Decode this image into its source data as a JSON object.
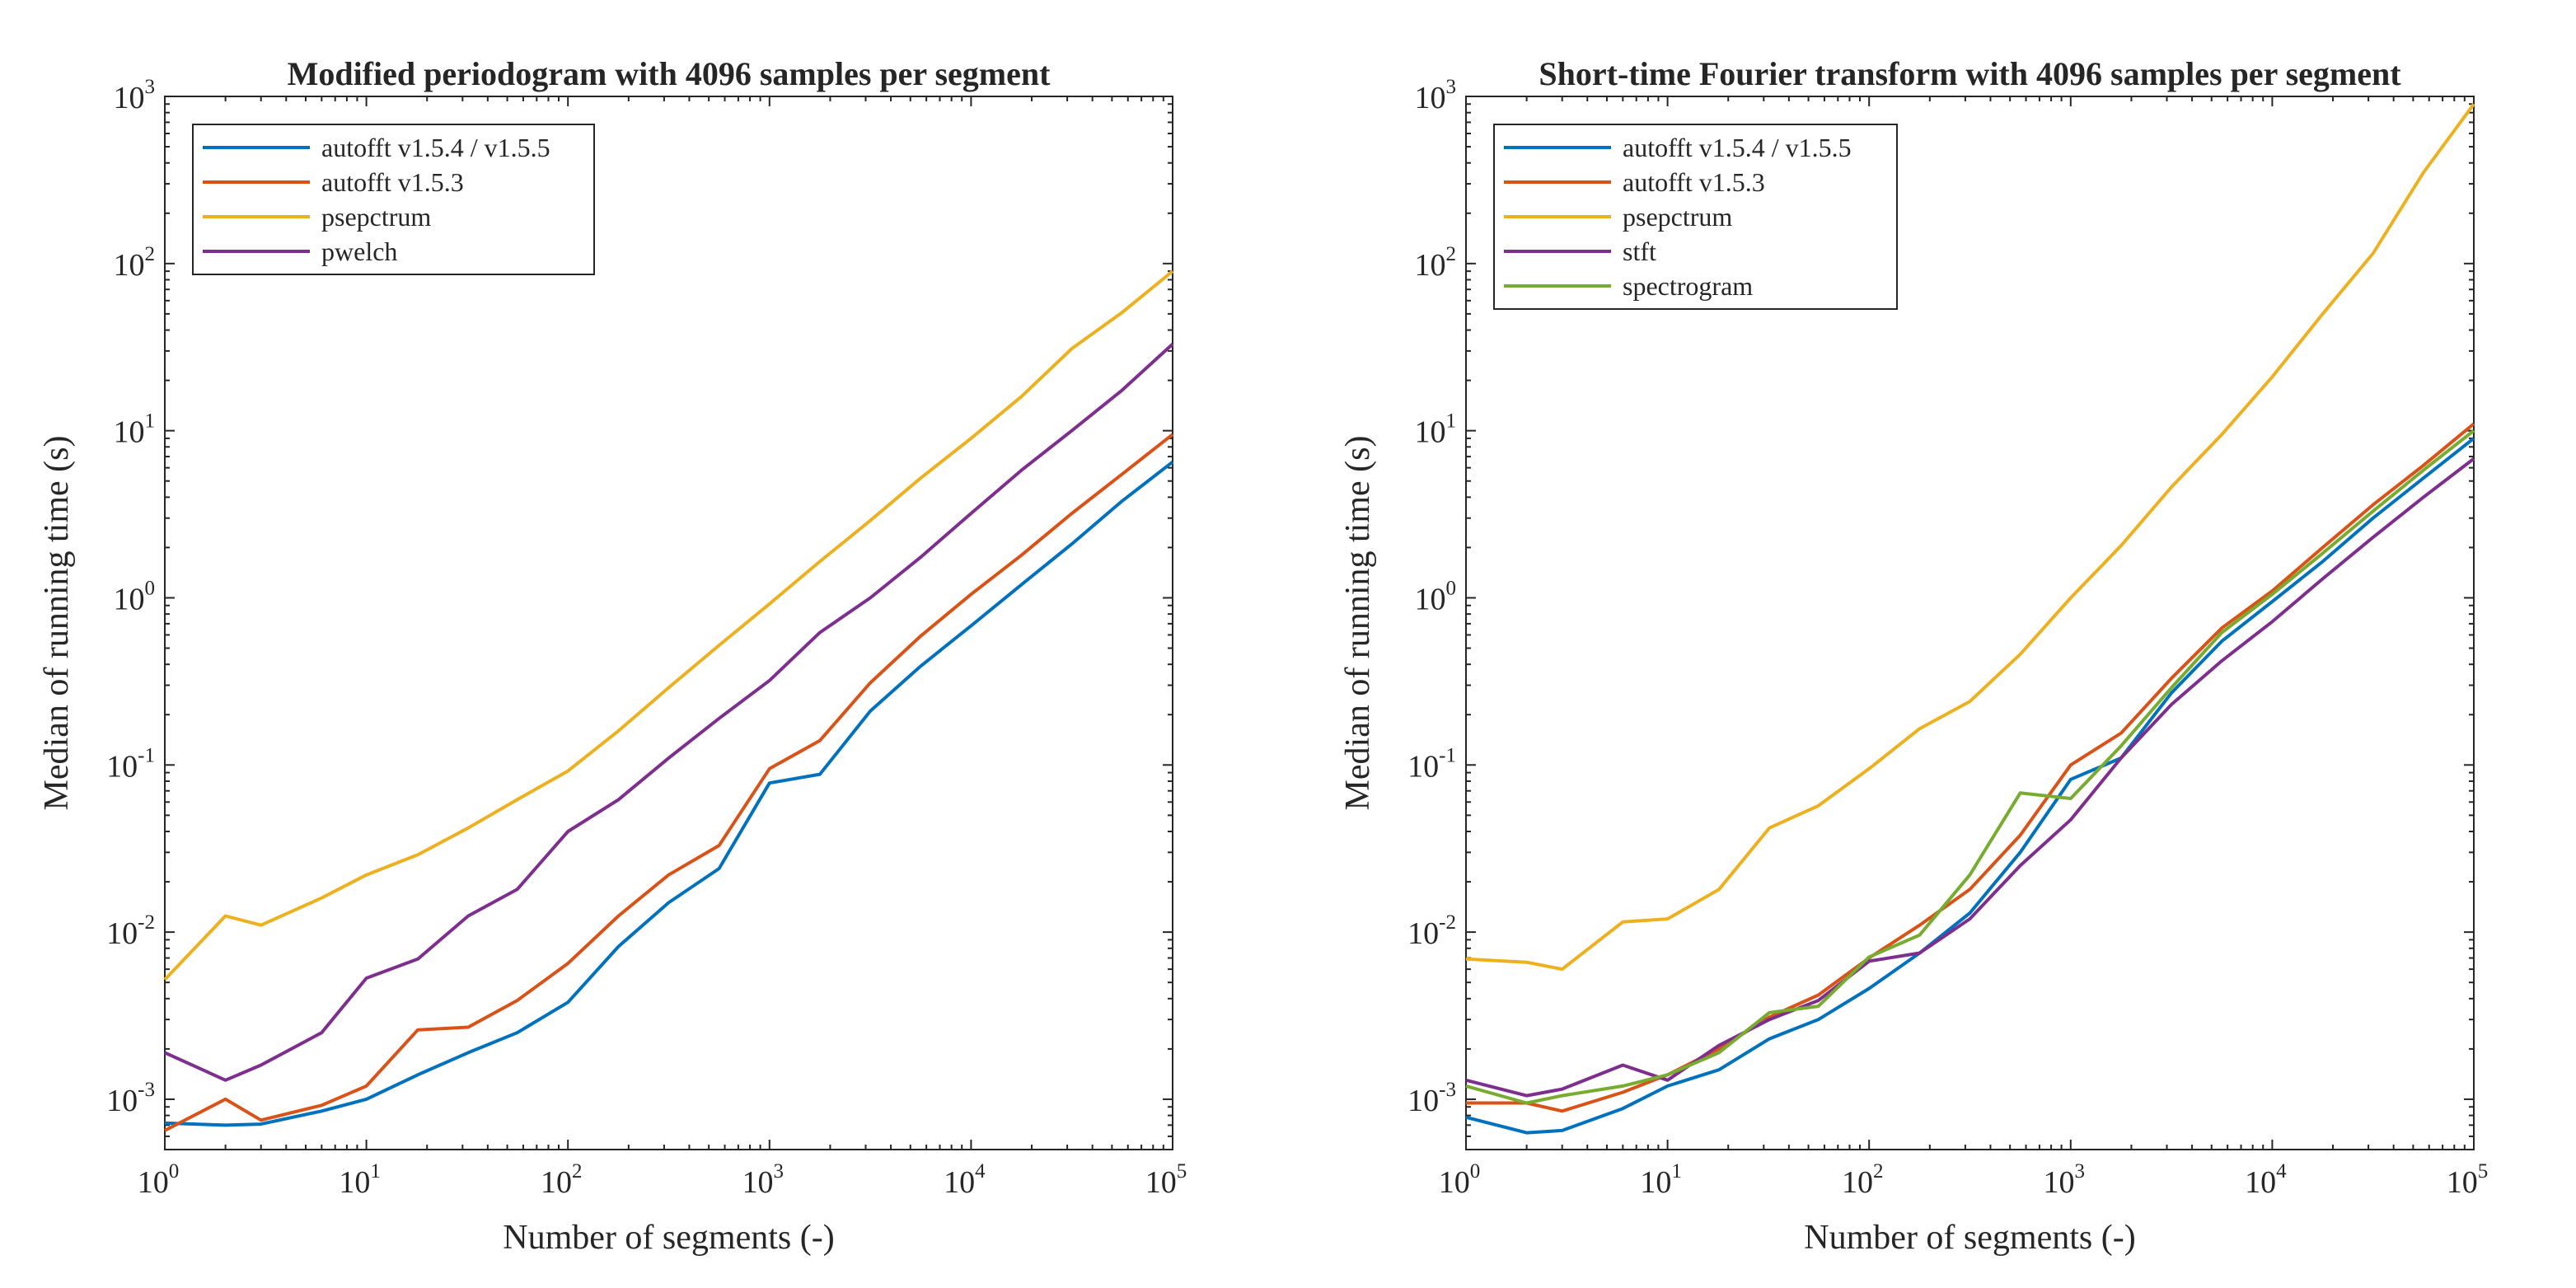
{
  "chart_data": [
    {
      "type": "line",
      "title": "Modified periodogram with 4096 samples per segment",
      "xlabel": "Number of segments (-)",
      "ylabel": "Median of running time (s)",
      "xscale": "log",
      "yscale": "log",
      "xlim": [
        1,
        100000
      ],
      "ylim": [
        0.0005,
        1000
      ],
      "x_ticks": [
        {
          "base": "10",
          "exp": "0"
        },
        {
          "base": "10",
          "exp": "1"
        },
        {
          "base": "10",
          "exp": "2"
        },
        {
          "base": "10",
          "exp": "3"
        },
        {
          "base": "10",
          "exp": "4"
        },
        {
          "base": "10",
          "exp": "5"
        }
      ],
      "y_ticks": [
        {
          "base": "10",
          "exp": "-3"
        },
        {
          "base": "10",
          "exp": "-2"
        },
        {
          "base": "10",
          "exp": "-1"
        },
        {
          "base": "10",
          "exp": "0"
        },
        {
          "base": "10",
          "exp": "1"
        },
        {
          "base": "10",
          "exp": "2"
        },
        {
          "base": "10",
          "exp": "3"
        }
      ],
      "grid": false,
      "legend_position": "top-left",
      "x": [
        1,
        2,
        3,
        6,
        10,
        18,
        32,
        56,
        100,
        178,
        316,
        562,
        1000,
        1778,
        3162,
        5623,
        10000,
        17783,
        31623,
        56234,
        100000
      ],
      "series": [
        {
          "name": "autofft v1.5.4 / v1.5.5",
          "color": "#0072BD",
          "values": [
            0.00072,
            0.0007,
            0.00071,
            0.00085,
            0.001,
            0.0014,
            0.0019,
            0.0025,
            0.0038,
            0.0082,
            0.015,
            0.024,
            0.078,
            0.088,
            0.21,
            0.39,
            0.68,
            1.2,
            2.1,
            3.8,
            6.5
          ]
        },
        {
          "name": "autofft v1.5.3",
          "color": "#D95319",
          "values": [
            0.00065,
            0.001,
            0.00075,
            0.00092,
            0.0012,
            0.0026,
            0.0027,
            0.0039,
            0.0065,
            0.0125,
            0.022,
            0.033,
            0.095,
            0.14,
            0.31,
            0.59,
            1.05,
            1.8,
            3.2,
            5.5,
            9.5
          ]
        },
        {
          "name": "psepctrum",
          "color": "#EDB120",
          "values": [
            0.0052,
            0.0125,
            0.011,
            0.016,
            0.022,
            0.029,
            0.042,
            0.062,
            0.092,
            0.16,
            0.29,
            0.52,
            0.92,
            1.65,
            2.9,
            5.2,
            9.0,
            16,
            31,
            51,
            90
          ]
        },
        {
          "name": "pwelch",
          "color": "#7E2F8E",
          "values": [
            0.0019,
            0.0013,
            0.0016,
            0.0025,
            0.0053,
            0.0069,
            0.0125,
            0.018,
            0.04,
            0.062,
            0.11,
            0.19,
            0.32,
            0.62,
            1.0,
            1.75,
            3.2,
            5.8,
            10,
            17.5,
            33
          ]
        }
      ]
    },
    {
      "type": "line",
      "title": "Short-time Fourier transform with 4096 samples per segment",
      "xlabel": "Number of segments (-)",
      "ylabel": "Median of running time (s)",
      "xscale": "log",
      "yscale": "log",
      "xlim": [
        1,
        100000
      ],
      "ylim": [
        0.0005,
        1000
      ],
      "x_ticks": [
        {
          "base": "10",
          "exp": "0"
        },
        {
          "base": "10",
          "exp": "1"
        },
        {
          "base": "10",
          "exp": "2"
        },
        {
          "base": "10",
          "exp": "3"
        },
        {
          "base": "10",
          "exp": "4"
        },
        {
          "base": "10",
          "exp": "5"
        }
      ],
      "y_ticks": [
        {
          "base": "10",
          "exp": "-3"
        },
        {
          "base": "10",
          "exp": "-2"
        },
        {
          "base": "10",
          "exp": "-1"
        },
        {
          "base": "10",
          "exp": "0"
        },
        {
          "base": "10",
          "exp": "1"
        },
        {
          "base": "10",
          "exp": "2"
        },
        {
          "base": "10",
          "exp": "3"
        }
      ],
      "grid": false,
      "legend_position": "top-left",
      "x": [
        1,
        2,
        3,
        6,
        10,
        18,
        32,
        56,
        100,
        178,
        316,
        562,
        1000,
        1778,
        3162,
        5623,
        10000,
        17783,
        31623,
        56234,
        100000
      ],
      "series": [
        {
          "name": "autofft v1.5.4 / v1.5.5",
          "color": "#0072BD",
          "values": [
            0.00078,
            0.00063,
            0.00065,
            0.00088,
            0.0012,
            0.0015,
            0.0023,
            0.003,
            0.0046,
            0.0075,
            0.013,
            0.03,
            0.082,
            0.11,
            0.27,
            0.55,
            0.95,
            1.65,
            3.0,
            5.2,
            9.0
          ]
        },
        {
          "name": "autofft v1.5.3",
          "color": "#D95319",
          "values": [
            0.00095,
            0.00095,
            0.00085,
            0.0011,
            0.0014,
            0.002,
            0.0031,
            0.0042,
            0.007,
            0.011,
            0.018,
            0.038,
            0.1,
            0.155,
            0.33,
            0.66,
            1.1,
            2.0,
            3.6,
            6.2,
            11
          ]
        },
        {
          "name": "psepctrum",
          "color": "#EDB120",
          "values": [
            0.0069,
            0.0066,
            0.006,
            0.0115,
            0.012,
            0.018,
            0.042,
            0.057,
            0.095,
            0.165,
            0.24,
            0.46,
            1.0,
            2.05,
            4.6,
            9.5,
            21,
            50,
            115,
            350,
            900
          ]
        },
        {
          "name": "stft",
          "color": "#7E2F8E",
          "values": [
            0.0013,
            0.00105,
            0.00115,
            0.0016,
            0.0013,
            0.0021,
            0.003,
            0.0039,
            0.0067,
            0.0075,
            0.012,
            0.025,
            0.047,
            0.11,
            0.23,
            0.42,
            0.72,
            1.3,
            2.3,
            4.0,
            6.8
          ]
        },
        {
          "name": "spectrogram",
          "color": "#77AC30",
          "values": [
            0.0012,
            0.00095,
            0.00105,
            0.0012,
            0.0014,
            0.0019,
            0.0033,
            0.0036,
            0.0071,
            0.0096,
            0.022,
            0.068,
            0.063,
            0.13,
            0.29,
            0.62,
            1.05,
            1.85,
            3.3,
            5.8,
            10
          ]
        }
      ]
    }
  ]
}
